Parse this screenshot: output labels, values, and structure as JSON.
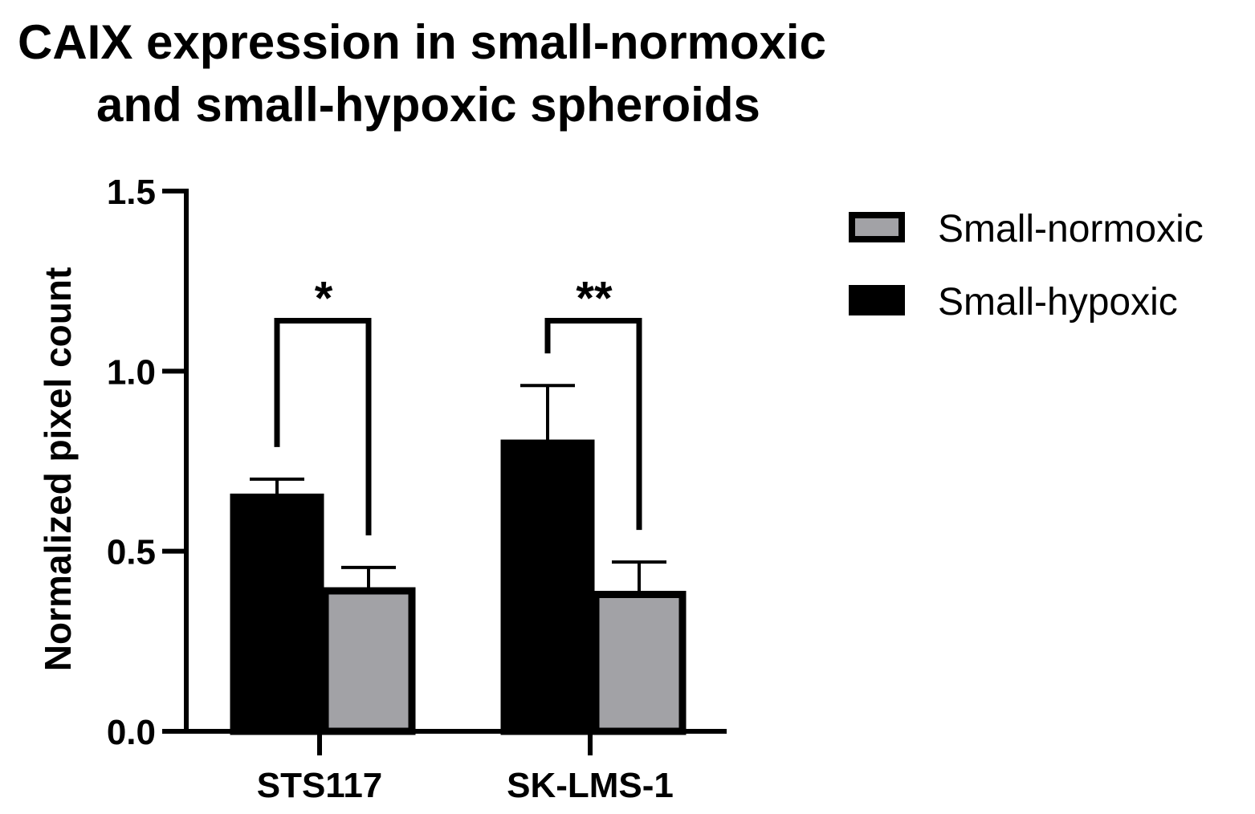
{
  "chart_data": {
    "type": "bar",
    "title_lines": [
      "CAIX expression in small-normoxic",
      "and small-hypoxic spheroids"
    ],
    "ylabel": "Normalized pixel count",
    "xlabel": "",
    "ylim": [
      0,
      1.5
    ],
    "yticks": [
      "0.0",
      "0.5",
      "1.0",
      "1.5"
    ],
    "ytick_values": [
      0,
      0.5,
      1.0,
      1.5
    ],
    "categories": [
      "STS117",
      "SK-LMS-1"
    ],
    "series": [
      {
        "name": "Small-hypoxic",
        "color": "#000000",
        "values": [
          0.65,
          0.8
        ],
        "errors": [
          0.05,
          0.16
        ]
      },
      {
        "name": "Small-normoxic",
        "color": "#a2a2a6",
        "values": [
          0.39,
          0.38
        ],
        "errors": [
          0.065,
          0.09
        ]
      }
    ],
    "legend": [
      {
        "label": "Small-normoxic",
        "color": "#a2a2a6"
      },
      {
        "label": "Small-hypoxic",
        "color": "#000000"
      }
    ],
    "legend_position": "right",
    "significance": [
      {
        "category": "STS117",
        "label": "*",
        "bracket_level": 1.14
      },
      {
        "category": "SK-LMS-1",
        "label": "**",
        "bracket_level": 1.14
      }
    ]
  }
}
